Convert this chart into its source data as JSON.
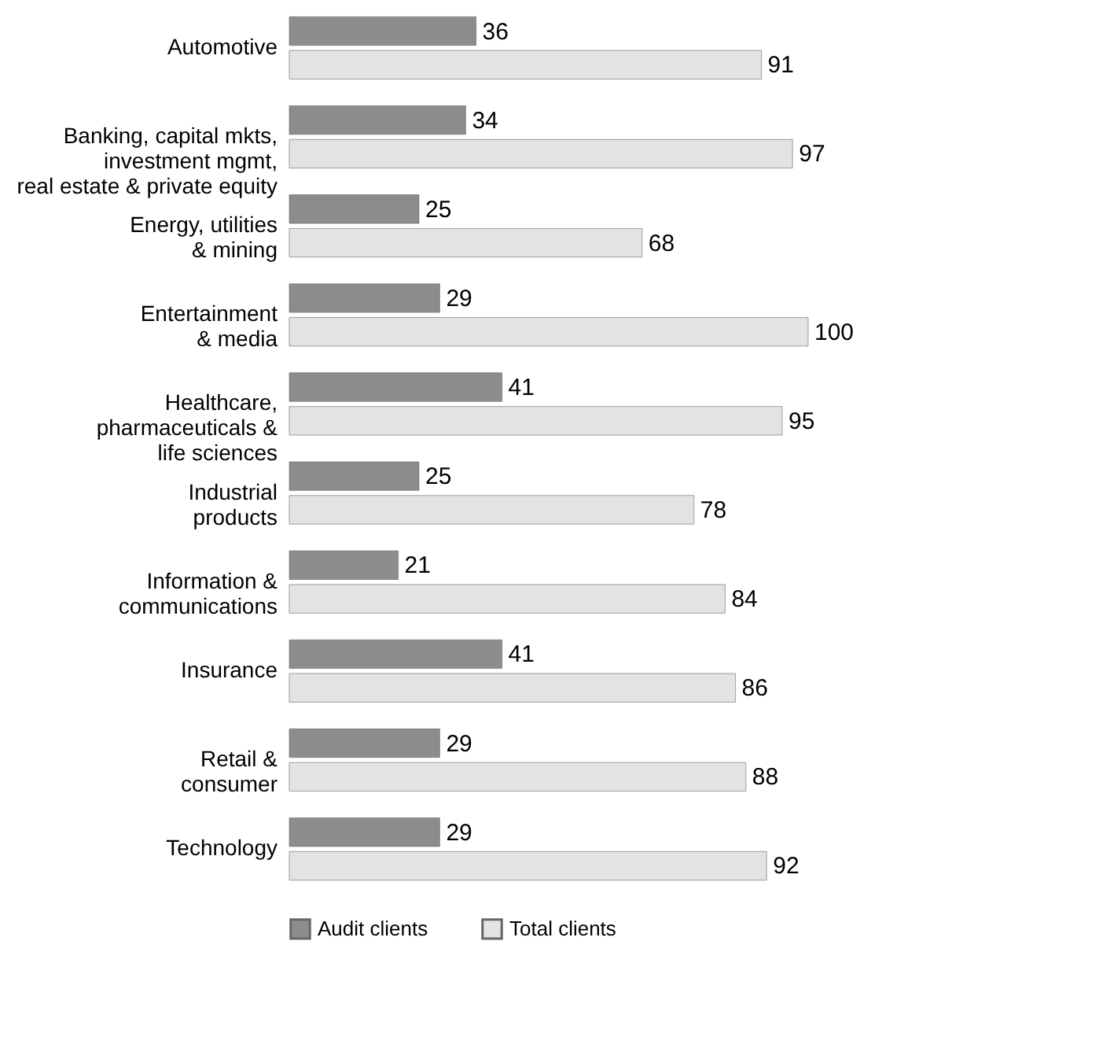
{
  "chart_data": {
    "type": "bar",
    "orientation": "horizontal",
    "categories": [
      "Automotive",
      "Banking, capital mkts,\ninvestment mgmt,\nreal estate & private equity",
      "Energy, utilities\n& mining",
      "Entertainment\n& media",
      "Healthcare,\npharmaceuticals &\nlife sciences",
      "Industrial\nproducts",
      "Information &\ncommunications",
      "Insurance",
      "Retail &\nconsumer",
      "Technology"
    ],
    "series": [
      {
        "name": "Audit clients",
        "color": "#8c8c8c",
        "values": [
          36,
          34,
          25,
          29,
          41,
          25,
          21,
          41,
          29,
          29
        ]
      },
      {
        "name": "Total clients",
        "color": "#e3e3e3",
        "values": [
          91,
          97,
          68,
          100,
          95,
          78,
          84,
          86,
          88,
          92
        ]
      }
    ],
    "data_labels": true,
    "grid": false,
    "legend": "bottom"
  }
}
